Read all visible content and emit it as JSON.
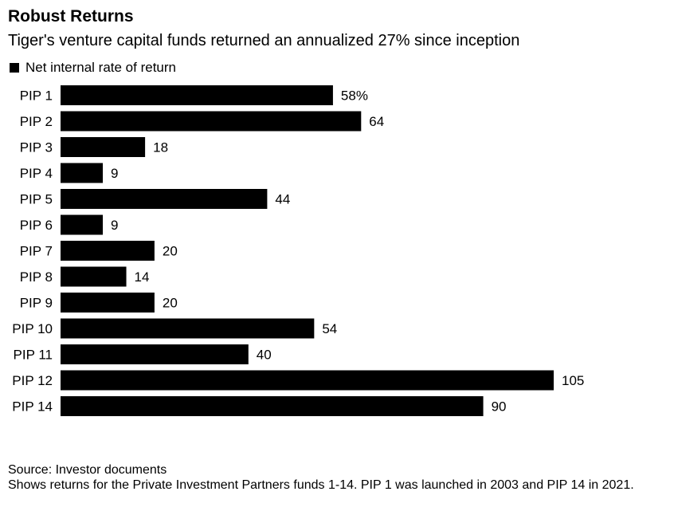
{
  "chart_data": {
    "type": "bar",
    "orientation": "horizontal",
    "title": "Robust Returns",
    "subtitle": "Tiger's venture capital funds returned an annualized 27% since inception",
    "legend": {
      "label": "Net internal rate of return",
      "color": "#000000",
      "position": "top-left"
    },
    "categories": [
      "PIP 1",
      "PIP 2",
      "PIP 3",
      "PIP 4",
      "PIP 5",
      "PIP 6",
      "PIP 7",
      "PIP 8",
      "PIP 9",
      "PIP 10",
      "PIP 11",
      "PIP 12",
      "PIP 14"
    ],
    "values": [
      58,
      64,
      18,
      9,
      44,
      9,
      20,
      14,
      20,
      54,
      40,
      105,
      90
    ],
    "value_labels": [
      "58%",
      "64",
      "18",
      "9",
      "44",
      "9",
      "20",
      "14",
      "20",
      "54",
      "40",
      "105",
      "90"
    ],
    "xlim": [
      0,
      105
    ],
    "grid": false,
    "bar_color": "#000000"
  },
  "footer": {
    "source": "Source: Investor documents",
    "note": "Shows returns for the Private Investment Partners funds 1-14. PIP 1 was launched in 2003 and PIP 14 in 2021."
  }
}
